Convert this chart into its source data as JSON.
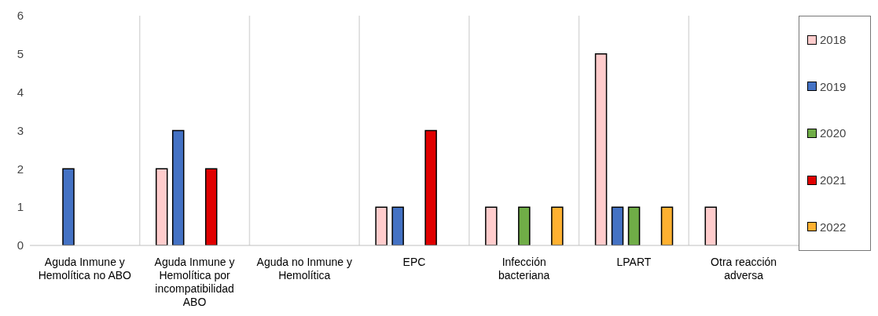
{
  "chart_data": {
    "type": "bar",
    "categories": [
      "Aguda Inmune y Hemolítica no ABO",
      "Aguda Inmune y Hemolítica por incompatibilidad ABO",
      "Aguda no Inmune y Hemolítica",
      "EPC",
      "Infección bacteriana",
      "LPART",
      "Otra reacción adversa"
    ],
    "series": [
      {
        "name": "2018",
        "color": "#ffcccc",
        "values": [
          0,
          2,
          0,
          1,
          1,
          5,
          1
        ]
      },
      {
        "name": "2019",
        "color": "#4472c4",
        "values": [
          2,
          3,
          0,
          1,
          0,
          1,
          0
        ]
      },
      {
        "name": "2020",
        "color": "#70ad47",
        "values": [
          0,
          0,
          0,
          0,
          1,
          1,
          0
        ]
      },
      {
        "name": "2021",
        "color": "#e00000",
        "values": [
          0,
          2,
          0,
          3,
          0,
          0,
          0
        ]
      },
      {
        "name": "2022",
        "color": "#ffb131",
        "values": [
          0,
          0,
          0,
          0,
          1,
          1,
          0
        ]
      }
    ],
    "ylim": [
      0,
      6
    ],
    "yticks": [
      0,
      1,
      2,
      3,
      4,
      5,
      6
    ],
    "grid": "x",
    "legend": "right"
  }
}
